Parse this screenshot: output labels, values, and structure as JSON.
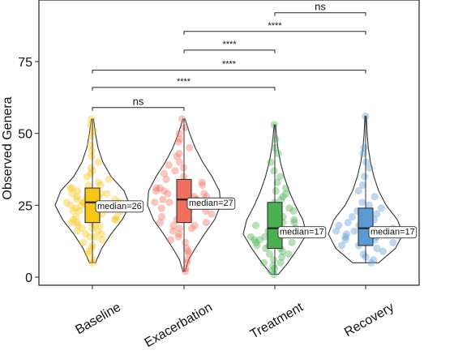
{
  "chart_data": {
    "type": "violin",
    "ylabel": "Observed Genera",
    "ylim": [
      -3,
      95
    ],
    "yticks": [
      0,
      25,
      50,
      75
    ],
    "categories": [
      "Baseline",
      "Exacerbation",
      "Treatment",
      "Recovery"
    ],
    "colors": [
      "#F7C616",
      "#F0705F",
      "#4CAF50",
      "#5B9BD5"
    ],
    "groups": [
      {
        "name": "Baseline",
        "min": 5,
        "max": 55,
        "q1": 19,
        "median": 26,
        "q3": 31,
        "median_label": "median=26",
        "density": [
          [
            5,
            0.08
          ],
          [
            10,
            0.25
          ],
          [
            15,
            0.5
          ],
          [
            20,
            0.8
          ],
          [
            25,
            1.0
          ],
          [
            30,
            0.85
          ],
          [
            35,
            0.5
          ],
          [
            40,
            0.28
          ],
          [
            45,
            0.15
          ],
          [
            50,
            0.08
          ],
          [
            55,
            0.03
          ]
        ],
        "points": [
          5,
          6,
          8,
          9,
          10,
          11,
          12,
          13,
          14,
          14,
          15,
          15,
          16,
          16,
          17,
          17,
          18,
          18,
          18,
          19,
          19,
          19,
          20,
          20,
          20,
          21,
          21,
          21,
          22,
          22,
          22,
          23,
          23,
          23,
          24,
          24,
          24,
          25,
          25,
          25,
          26,
          26,
          26,
          26,
          27,
          27,
          27,
          28,
          28,
          28,
          29,
          29,
          29,
          30,
          30,
          31,
          31,
          32,
          32,
          33,
          34,
          35,
          36,
          37,
          38,
          40,
          42,
          44,
          46,
          49,
          51,
          53,
          55
        ]
      },
      {
        "name": "Exacerbation",
        "min": 2,
        "max": 55,
        "q1": 19,
        "median": 27,
        "q3": 34,
        "median_label": "median=27",
        "density": [
          [
            2,
            0.03
          ],
          [
            6,
            0.12
          ],
          [
            10,
            0.3
          ],
          [
            15,
            0.55
          ],
          [
            20,
            0.82
          ],
          [
            25,
            0.98
          ],
          [
            30,
            0.95
          ],
          [
            35,
            0.75
          ],
          [
            40,
            0.5
          ],
          [
            45,
            0.3
          ],
          [
            50,
            0.15
          ],
          [
            55,
            0.03
          ]
        ],
        "points": [
          2,
          3,
          5,
          6,
          8,
          9,
          10,
          12,
          13,
          14,
          15,
          16,
          17,
          17,
          18,
          18,
          19,
          19,
          20,
          20,
          21,
          21,
          22,
          22,
          23,
          23,
          24,
          24,
          25,
          25,
          26,
          26,
          27,
          27,
          27,
          28,
          28,
          29,
          29,
          30,
          30,
          31,
          31,
          32,
          32,
          33,
          34,
          35,
          36,
          37,
          38,
          39,
          40,
          42,
          43,
          45,
          47,
          48,
          50,
          52,
          55
        ]
      },
      {
        "name": "Treatment",
        "min": 1,
        "max": 53,
        "q1": 10,
        "median": 17,
        "q3": 26,
        "median_label": "median=17",
        "density": [
          [
            1,
            0.1
          ],
          [
            5,
            0.35
          ],
          [
            10,
            0.62
          ],
          [
            15,
            0.85
          ],
          [
            20,
            0.75
          ],
          [
            25,
            0.55
          ],
          [
            30,
            0.38
          ],
          [
            35,
            0.25
          ],
          [
            40,
            0.15
          ],
          [
            45,
            0.08
          ],
          [
            50,
            0.04
          ],
          [
            53,
            0.02
          ]
        ],
        "points": [
          1,
          2,
          3,
          4,
          5,
          5,
          6,
          7,
          8,
          8,
          9,
          10,
          10,
          11,
          11,
          12,
          12,
          13,
          13,
          14,
          14,
          15,
          15,
          16,
          16,
          17,
          17,
          18,
          18,
          19,
          19,
          20,
          20,
          21,
          22,
          23,
          24,
          25,
          26,
          27,
          28,
          29,
          30,
          31,
          33,
          35,
          37,
          40,
          43,
          45,
          48,
          53
        ]
      },
      {
        "name": "Recovery",
        "min": 5,
        "max": 56,
        "q1": 11,
        "median": 17,
        "q3": 24,
        "median_label": "median=17",
        "density": [
          [
            5,
            0.35
          ],
          [
            10,
            0.8
          ],
          [
            15,
            1.0
          ],
          [
            20,
            0.85
          ],
          [
            25,
            0.55
          ],
          [
            30,
            0.35
          ],
          [
            35,
            0.22
          ],
          [
            40,
            0.13
          ],
          [
            45,
            0.07
          ],
          [
            50,
            0.04
          ],
          [
            56,
            0.02
          ]
        ],
        "points": [
          5,
          6,
          7,
          8,
          9,
          10,
          11,
          11,
          12,
          12,
          13,
          13,
          14,
          14,
          15,
          15,
          16,
          16,
          17,
          17,
          18,
          18,
          19,
          20,
          21,
          22,
          23,
          24,
          25,
          26,
          28,
          30,
          32,
          35,
          38,
          40,
          43,
          45,
          56
        ]
      }
    ],
    "comparisons": [
      {
        "from": 0,
        "to": 1,
        "y": 59,
        "label": "ns"
      },
      {
        "from": 0,
        "to": 2,
        "y": 66,
        "label": "****"
      },
      {
        "from": 0,
        "to": 3,
        "y": 72,
        "label": "****"
      },
      {
        "from": 1,
        "to": 2,
        "y": 79,
        "label": "****"
      },
      {
        "from": 1,
        "to": 3,
        "y": 85.5,
        "label": "****"
      },
      {
        "from": 2,
        "to": 3,
        "y": 92,
        "label": "ns"
      }
    ]
  }
}
